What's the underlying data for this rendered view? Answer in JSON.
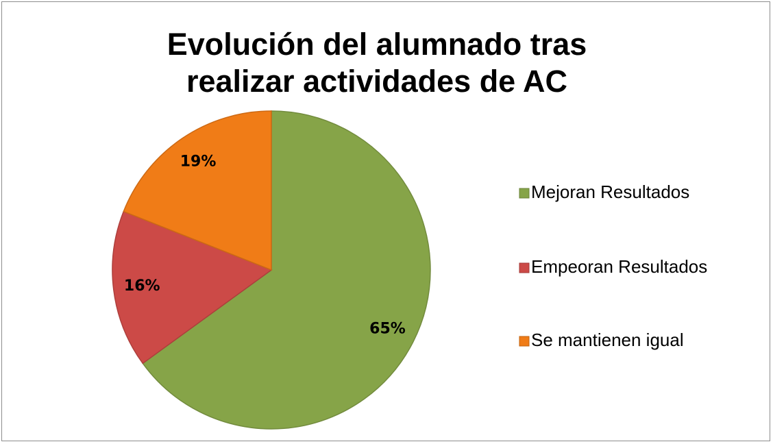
{
  "chart_data": {
    "type": "pie",
    "title": "Evolución del alumnado tras realizar actividades de AC",
    "categories": [
      "Mejoran Resultados",
      "Empeoran Resultados",
      "Se mantienen igual"
    ],
    "values": [
      65,
      16,
      19
    ],
    "value_labels": [
      "65%",
      "16%",
      "19%"
    ],
    "colors": [
      "#86a448",
      "#cc4a47",
      "#f07c17"
    ],
    "legend": "right"
  }
}
